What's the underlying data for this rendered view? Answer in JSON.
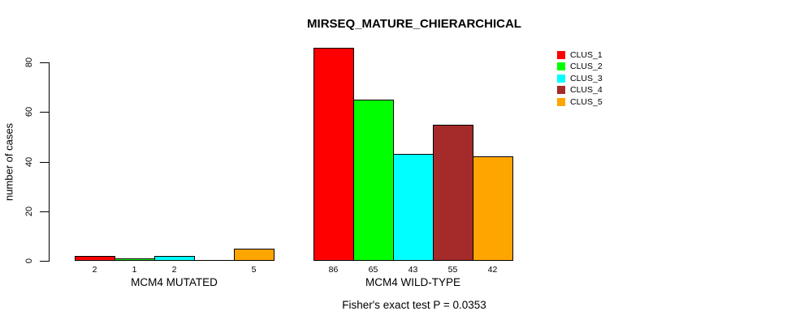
{
  "title": "MIRSEQ_MATURE_CHIERARCHICAL",
  "footer": "Fisher's exact test P = 0.0353",
  "chart_data": {
    "type": "bar",
    "title": "MIRSEQ_MATURE_CHIERARCHICAL",
    "ylabel": "number of cases",
    "xlabel": "",
    "ylim": [
      0,
      80
    ],
    "yticks": [
      0,
      20,
      40,
      60,
      80
    ],
    "grid": false,
    "legend_position": "top-right-inside",
    "series_names": [
      "CLUS_1",
      "CLUS_2",
      "CLUS_3",
      "CLUS_4",
      "CLUS_5"
    ],
    "series_colors": [
      "#ff0000",
      "#00ff00",
      "#00ffff",
      "#a52a2a",
      "#ffa500"
    ],
    "groups": [
      {
        "label": "MCM4 MUTATED",
        "values": [
          2,
          1,
          2,
          0,
          5
        ],
        "value_labels": [
          "2",
          "1",
          "2",
          "",
          "5"
        ]
      },
      {
        "label": "MCM4 WILD-TYPE",
        "values": [
          86,
          65,
          43,
          55,
          42
        ],
        "value_labels": [
          "86",
          "65",
          "43",
          "55",
          "42"
        ]
      }
    ],
    "annotation": "Fisher's exact test P = 0.0353"
  }
}
